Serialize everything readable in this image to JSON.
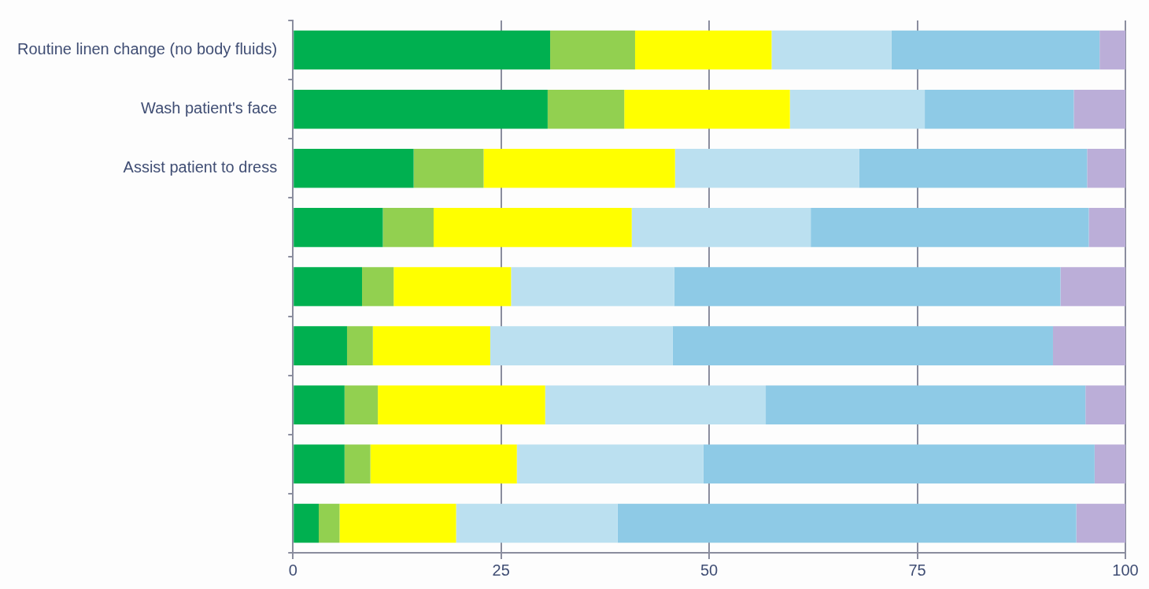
{
  "chart_data": {
    "type": "bar",
    "orientation": "horizontal",
    "stacked": true,
    "categories": [
      "Routine linen change (no body fluids)",
      "Wash patient's face",
      "Assist patient to dress",
      null,
      null,
      null,
      null,
      null,
      null
    ],
    "series": [
      {
        "color": "#00b050",
        "values": [
          30.9,
          30.6,
          14.5,
          10.8,
          8.3,
          6.5,
          6.2,
          6.2,
          3.1
        ]
      },
      {
        "color": "#92d050",
        "values": [
          10.2,
          9.2,
          8.4,
          6.1,
          3.8,
          3.1,
          4.0,
          3.1,
          2.5
        ]
      },
      {
        "color": "#ffff00",
        "values": [
          16.4,
          19.9,
          23.0,
          23.8,
          14.1,
          14.1,
          20.1,
          17.6,
          14.0
        ]
      },
      {
        "color": "#bbe0f0",
        "values": [
          14.4,
          16.2,
          22.1,
          21.5,
          19.6,
          21.9,
          26.5,
          22.4,
          19.4
        ]
      },
      {
        "color": "#8ecae6",
        "values": [
          25.0,
          17.9,
          27.4,
          33.4,
          46.4,
          45.7,
          38.4,
          47.0,
          55.1
        ]
      },
      {
        "color": "#bbaed8",
        "values": [
          3.1,
          6.2,
          4.6,
          4.4,
          7.8,
          8.7,
          4.8,
          3.7,
          5.9
        ]
      }
    ],
    "xlim": [
      0,
      100
    ],
    "xticks": [
      0,
      25,
      50,
      75,
      100
    ],
    "grid": "x",
    "legend": false
  }
}
